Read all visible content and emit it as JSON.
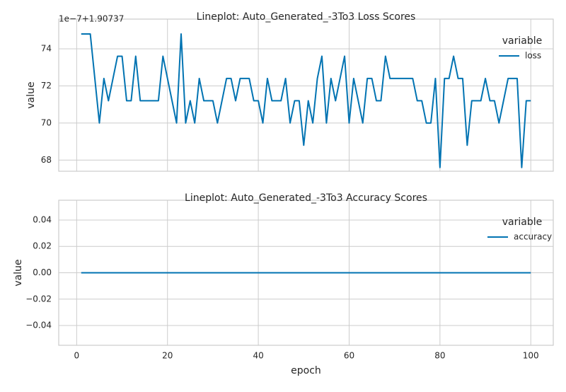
{
  "chart_data": [
    {
      "type": "line",
      "title": "Lineplot: Auto_Generated_-3To3 Loss Scores",
      "y_offset_label": "1e−7+1.90737",
      "ylabel": "value",
      "x": [
        1,
        2,
        3,
        4,
        5,
        6,
        7,
        8,
        9,
        10,
        11,
        12,
        13,
        14,
        15,
        16,
        17,
        18,
        19,
        20,
        21,
        22,
        23,
        24,
        25,
        26,
        27,
        28,
        29,
        30,
        31,
        32,
        33,
        34,
        35,
        36,
        37,
        38,
        39,
        40,
        41,
        42,
        43,
        44,
        45,
        46,
        47,
        48,
        49,
        50,
        51,
        52,
        53,
        54,
        55,
        56,
        57,
        58,
        59,
        60,
        61,
        62,
        63,
        64,
        65,
        66,
        67,
        68,
        69,
        70,
        71,
        72,
        73,
        74,
        75,
        76,
        77,
        78,
        79,
        80,
        81,
        82,
        83,
        84,
        85,
        86,
        87,
        88,
        89,
        90,
        91,
        92,
        93,
        94,
        95,
        96,
        97,
        98,
        99,
        100
      ],
      "series": [
        {
          "name": "loss",
          "color": "#0173b2",
          "values": [
            74.8,
            74.8,
            74.8,
            72.4,
            70.0,
            72.4,
            71.2,
            72.4,
            73.6,
            73.6,
            71.2,
            71.2,
            73.6,
            71.2,
            71.2,
            71.2,
            71.2,
            71.2,
            73.6,
            72.4,
            71.2,
            70.0,
            74.8,
            70.0,
            71.2,
            70.0,
            72.4,
            71.2,
            71.2,
            71.2,
            70.0,
            71.2,
            72.4,
            72.4,
            71.2,
            72.4,
            72.4,
            72.4,
            71.2,
            71.2,
            70.0,
            72.4,
            71.2,
            71.2,
            71.2,
            72.4,
            70.0,
            71.2,
            71.2,
            68.8,
            71.2,
            70.0,
            72.4,
            73.6,
            70.0,
            72.4,
            71.2,
            72.4,
            73.6,
            70.0,
            72.4,
            71.2,
            70.0,
            72.4,
            72.4,
            71.2,
            71.2,
            73.6,
            72.4,
            72.4,
            72.4,
            72.4,
            72.4,
            72.4,
            71.2,
            71.2,
            70.0,
            70.0,
            72.4,
            67.6,
            72.4,
            72.4,
            73.6,
            72.4,
            72.4,
            68.8,
            71.2,
            71.2,
            71.2,
            72.4,
            71.2,
            71.2,
            70.0,
            71.2,
            72.4,
            72.4,
            72.4,
            67.6,
            71.2,
            71.2
          ]
        }
      ],
      "legend_title": "variable",
      "xlim": [
        -3.95,
        104.95
      ],
      "xticks": [
        0,
        20,
        40,
        60,
        80,
        100
      ],
      "ylim": [
        67.4,
        75.6
      ],
      "yticks": [
        68,
        70,
        72,
        74
      ],
      "grid": true
    },
    {
      "type": "line",
      "title": "Lineplot: Auto_Generated_-3To3 Accuracy Scores",
      "ylabel": "value",
      "xlabel": "epoch",
      "x": [
        1,
        2,
        3,
        4,
        5,
        6,
        7,
        8,
        9,
        10,
        11,
        12,
        13,
        14,
        15,
        16,
        17,
        18,
        19,
        20,
        21,
        22,
        23,
        24,
        25,
        26,
        27,
        28,
        29,
        30,
        31,
        32,
        33,
        34,
        35,
        36,
        37,
        38,
        39,
        40,
        41,
        42,
        43,
        44,
        45,
        46,
        47,
        48,
        49,
        50,
        51,
        52,
        53,
        54,
        55,
        56,
        57,
        58,
        59,
        60,
        61,
        62,
        63,
        64,
        65,
        66,
        67,
        68,
        69,
        70,
        71,
        72,
        73,
        74,
        75,
        76,
        77,
        78,
        79,
        80,
        81,
        82,
        83,
        84,
        85,
        86,
        87,
        88,
        89,
        90,
        91,
        92,
        93,
        94,
        95,
        96,
        97,
        98,
        99,
        100
      ],
      "series": [
        {
          "name": "accuracy",
          "color": "#0173b2",
          "values": [
            0,
            0,
            0,
            0,
            0,
            0,
            0,
            0,
            0,
            0,
            0,
            0,
            0,
            0,
            0,
            0,
            0,
            0,
            0,
            0,
            0,
            0,
            0,
            0,
            0,
            0,
            0,
            0,
            0,
            0,
            0,
            0,
            0,
            0,
            0,
            0,
            0,
            0,
            0,
            0,
            0,
            0,
            0,
            0,
            0,
            0,
            0,
            0,
            0,
            0,
            0,
            0,
            0,
            0,
            0,
            0,
            0,
            0,
            0,
            0,
            0,
            0,
            0,
            0,
            0,
            0,
            0,
            0,
            0,
            0,
            0,
            0,
            0,
            0,
            0,
            0,
            0,
            0,
            0,
            0,
            0,
            0,
            0,
            0,
            0,
            0,
            0,
            0,
            0,
            0,
            0,
            0,
            0,
            0,
            0,
            0,
            0,
            0,
            0,
            0
          ]
        }
      ],
      "legend_title": "variable",
      "xlim": [
        -3.95,
        104.95
      ],
      "xticks": [
        0,
        20,
        40,
        60,
        80,
        100
      ],
      "ylim": [
        -0.055,
        0.055
      ],
      "yticks": [
        {
          "value": -0.04,
          "label": "−0.04"
        },
        {
          "value": -0.02,
          "label": "−0.02"
        },
        {
          "value": 0,
          "label": "0.00"
        },
        0.02,
        0.04
      ],
      "grid": true
    }
  ]
}
